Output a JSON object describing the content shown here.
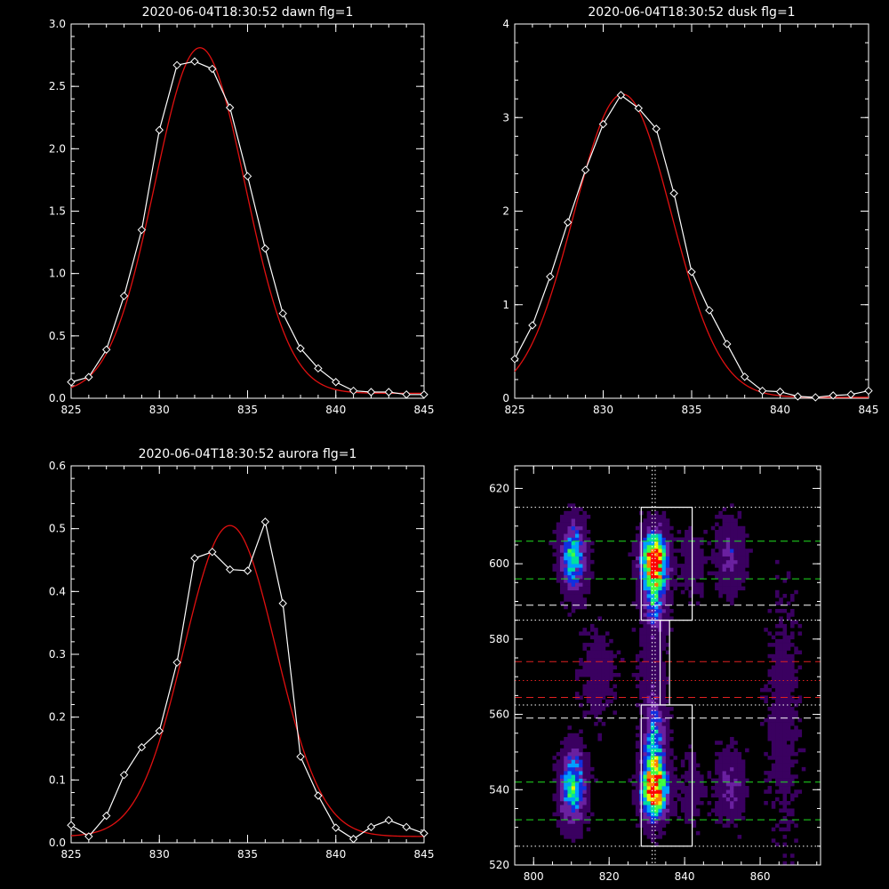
{
  "chart_data": [
    {
      "type": "line",
      "title": "2020-06-04T18:30:52 dawn flg=1",
      "xlim": [
        825,
        845
      ],
      "ylim": [
        0,
        3.0
      ],
      "xticks": [
        825,
        830,
        835,
        840,
        845
      ],
      "yticks": [
        0,
        0.5,
        1.0,
        1.5,
        2.0,
        2.5,
        3.0
      ],
      "ytick_labels": [
        "0.0",
        "0.5",
        "1.0",
        "1.5",
        "2.0",
        "2.5",
        "3.0"
      ],
      "series": [
        {
          "color": "#ffffff",
          "marker": "diamond",
          "x": [
            825,
            826,
            827,
            828,
            829,
            830,
            831,
            832,
            833,
            834,
            835,
            836,
            837,
            838,
            839,
            840,
            841,
            842,
            843,
            844,
            845
          ],
          "y": [
            0.13,
            0.17,
            0.39,
            0.82,
            1.35,
            2.15,
            2.67,
            2.7,
            2.64,
            2.33,
            1.78,
            1.2,
            0.68,
            0.4,
            0.24,
            0.13,
            0.06,
            0.05,
            0.05,
            0.03,
            0.03
          ]
        },
        {
          "color": "#e01010",
          "type": "fit",
          "gauss": {
            "amp": 2.77,
            "center": 832.3,
            "sigma": 2.55,
            "base": 0.04
          }
        }
      ]
    },
    {
      "type": "line",
      "title": "2020-06-04T18:30:52 dusk flg=1",
      "xlim": [
        825,
        845
      ],
      "ylim": [
        0,
        4
      ],
      "xticks": [
        825,
        830,
        835,
        840,
        845
      ],
      "yticks": [
        0,
        1,
        2,
        3,
        4
      ],
      "ytick_labels": [
        "0",
        "1",
        "2",
        "3",
        "4"
      ],
      "series": [
        {
          "color": "#ffffff",
          "marker": "diamond",
          "x": [
            825,
            826,
            827,
            828,
            829,
            830,
            831,
            832,
            833,
            834,
            835,
            836,
            837,
            838,
            839,
            840,
            841,
            842,
            843,
            844,
            845
          ],
          "y": [
            0.42,
            0.78,
            1.3,
            1.88,
            2.44,
            2.93,
            3.24,
            3.1,
            2.88,
            2.19,
            1.35,
            0.94,
            0.58,
            0.23,
            0.08,
            0.07,
            0.02,
            0.01,
            0.03,
            0.04,
            0.08
          ]
        },
        {
          "color": "#e01010",
          "type": "fit",
          "gauss": {
            "amp": 3.24,
            "center": 831.1,
            "sigma": 2.75,
            "base": 0.01
          }
        }
      ]
    },
    {
      "type": "line",
      "title": "2020-06-04T18:30:52 aurora flg=1",
      "xlim": [
        825,
        845
      ],
      "ylim": [
        0,
        0.6
      ],
      "xticks": [
        825,
        830,
        835,
        840,
        845
      ],
      "yticks": [
        0,
        0.1,
        0.2,
        0.3,
        0.4,
        0.5,
        0.6
      ],
      "ytick_labels": [
        "0.0",
        "0.1",
        "0.2",
        "0.3",
        "0.4",
        "0.5",
        "0.6"
      ],
      "series": [
        {
          "color": "#ffffff",
          "marker": "diamond",
          "x": [
            825,
            826,
            827,
            828,
            829,
            830,
            831,
            832,
            833,
            834,
            835,
            836,
            837,
            838,
            839,
            840,
            841,
            842,
            843,
            844,
            845
          ],
          "y": [
            0.028,
            0.01,
            0.043,
            0.108,
            0.152,
            0.178,
            0.287,
            0.453,
            0.463,
            0.435,
            0.433,
            0.511,
            0.381,
            0.137,
            0.075,
            0.024,
            0.006,
            0.025,
            0.036,
            0.025,
            0.015
          ]
        },
        {
          "color": "#e01010",
          "type": "fit",
          "gauss": {
            "amp": 0.495,
            "center": 834.0,
            "sigma": 2.6,
            "base": 0.01
          }
        }
      ]
    },
    {
      "type": "heatmap",
      "xlim": [
        795,
        876
      ],
      "ylim": [
        520,
        626
      ],
      "xticks": [
        800,
        820,
        840,
        860
      ],
      "yticks": [
        520,
        540,
        560,
        580,
        600,
        620
      ],
      "colormap": [
        "#000000",
        "#3a0060",
        "#6a20a0",
        "#1030e0",
        "#00a0ff",
        "#00e0a0",
        "#40ff40",
        "#f0f000",
        "#ff8000",
        "#ff0000"
      ],
      "blobs": [
        {
          "cx": 810.5,
          "cy": 602,
          "sx": 2.2,
          "sy": 6,
          "amp": 0.55
        },
        {
          "cx": 810.5,
          "cy": 541,
          "sx": 2.2,
          "sy": 6,
          "amp": 0.6
        },
        {
          "cx": 832,
          "cy": 601,
          "sx": 2.3,
          "sy": 5,
          "amp": 1.0
        },
        {
          "cx": 832,
          "cy": 540,
          "sx": 2.3,
          "sy": 5,
          "amp": 1.0
        },
        {
          "cx": 832,
          "cy": 590,
          "sx": 2.0,
          "sy": 6,
          "amp": 0.4
        },
        {
          "cx": 832,
          "cy": 553,
          "sx": 2.0,
          "sy": 7,
          "amp": 0.45
        },
        {
          "cx": 831,
          "cy": 572,
          "sx": 2.5,
          "sy": 6,
          "amp": 0.12
        },
        {
          "cx": 852,
          "cy": 602,
          "sx": 2.5,
          "sy": 6,
          "amp": 0.22
        },
        {
          "cx": 852,
          "cy": 541,
          "sx": 2.5,
          "sy": 6,
          "amp": 0.22
        },
        {
          "cx": 842,
          "cy": 600,
          "sx": 2.0,
          "sy": 6,
          "amp": 0.12
        },
        {
          "cx": 842,
          "cy": 540,
          "sx": 2.0,
          "sy": 6,
          "amp": 0.12
        },
        {
          "cx": 817,
          "cy": 571,
          "sx": 3.0,
          "sy": 8,
          "amp": 0.12
        },
        {
          "cx": 866,
          "cy": 560,
          "sx": 3.0,
          "sy": 20,
          "amp": 0.1
        }
      ],
      "boxes": [
        {
          "x": [
            828.5,
            842
          ],
          "y": [
            585,
            615
          ],
          "color": "#ffffff"
        },
        {
          "x": [
            828.5,
            842
          ],
          "y": [
            525,
            562.5
          ],
          "color": "#ffffff"
        },
        {
          "x": [
            833.5,
            836
          ],
          "y": [
            562.5,
            585
          ],
          "color": "#ffffff"
        }
      ],
      "hlines": [
        {
          "y": 615,
          "color": "#ffffff",
          "style": "dotted"
        },
        {
          "y": 606,
          "color": "#20e020",
          "style": "dashed"
        },
        {
          "y": 596,
          "color": "#20e020",
          "style": "dashed"
        },
        {
          "y": 589,
          "color": "#ffffff",
          "style": "dashed"
        },
        {
          "y": 585,
          "color": "#ffffff",
          "style": "dotted"
        },
        {
          "y": 574,
          "color": "#e02020",
          "style": "dashed"
        },
        {
          "y": 569,
          "color": "#e02020",
          "style": "dotted"
        },
        {
          "y": 564.5,
          "color": "#e02020",
          "style": "dashed"
        },
        {
          "y": 562.5,
          "color": "#ffffff",
          "style": "dotted"
        },
        {
          "y": 559,
          "color": "#ffffff",
          "style": "dashed"
        },
        {
          "y": 542,
          "color": "#20e020",
          "style": "dashed"
        },
        {
          "y": 532,
          "color": "#20e020",
          "style": "dashed"
        },
        {
          "y": 525,
          "color": "#ffffff",
          "style": "dotted"
        }
      ],
      "vlines": [
        {
          "x": 831.4,
          "color": "#ffffff",
          "style": "dotted"
        },
        {
          "x": 832.2,
          "color": "#ffffff",
          "style": "dotted"
        }
      ]
    }
  ]
}
